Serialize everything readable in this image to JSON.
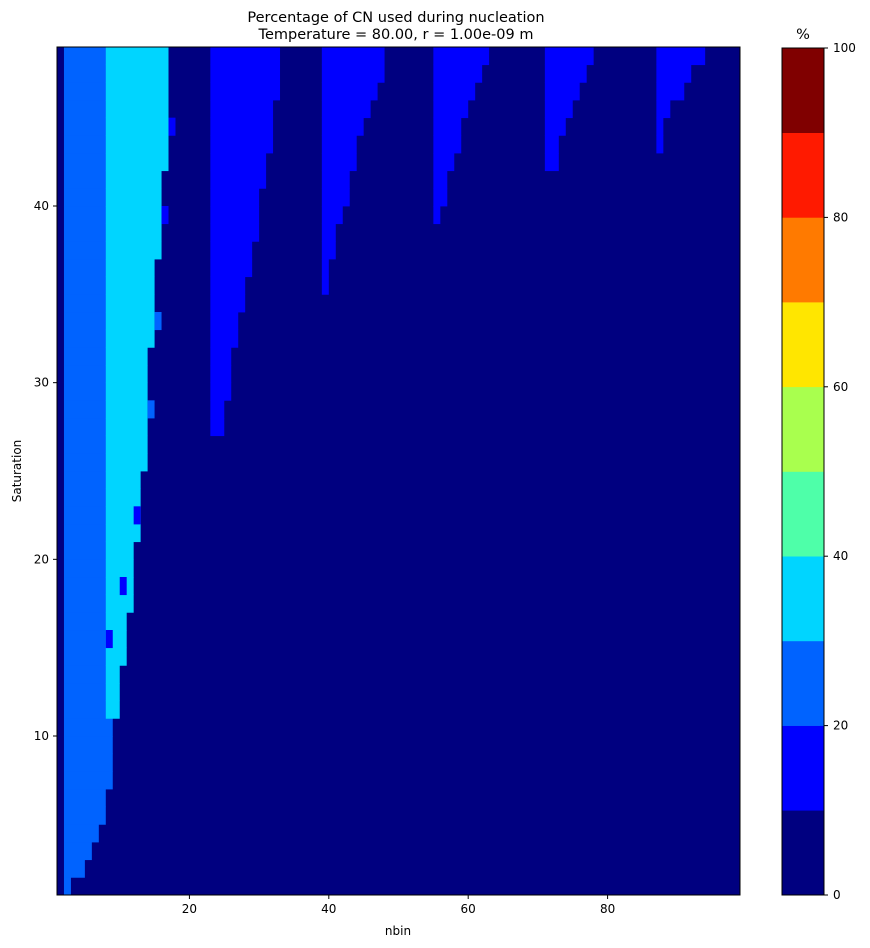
{
  "chart_data": {
    "type": "heatmap",
    "title": "Percentage of CN used during nucleation",
    "subtitle": "Temperature = 80.00, r = 1.00e-09 m",
    "xlabel": "nbin",
    "ylabel": "Saturation",
    "xlim": [
      1,
      99
    ],
    "ylim": [
      1,
      49
    ],
    "x_ticks": [
      20,
      40,
      60,
      80
    ],
    "y_ticks": [
      10,
      20,
      30,
      40
    ],
    "colorbar": {
      "label": "%",
      "range": [
        0,
        100
      ],
      "ticks": [
        0,
        20,
        40,
        60,
        80,
        100
      ],
      "levels": [
        0,
        10,
        20,
        30,
        40,
        50,
        60,
        70,
        80,
        90,
        100
      ],
      "colors": [
        "#000080",
        "#0000ff",
        "#0063ff",
        "#00d5ff",
        "#4effa9",
        "#a9ff4e",
        "#ffe600",
        "#ff7a00",
        "#ff1a00",
        "#800000"
      ]
    },
    "background_percent": 5,
    "bands": [
      {
        "x": [
          2,
          8
        ],
        "percent": 25,
        "rows": [
          [
            2,
            3
          ],
          [
            3,
            5
          ],
          [
            4,
            6
          ],
          [
            5,
            7
          ],
          [
            6,
            8
          ],
          [
            7,
            8
          ],
          [
            8,
            9
          ],
          [
            9,
            9
          ],
          [
            10,
            9
          ],
          [
            11,
            9
          ],
          [
            12,
            9
          ],
          [
            13,
            9
          ],
          [
            14,
            9
          ],
          [
            15,
            9
          ],
          [
            16,
            9
          ],
          [
            17,
            9
          ],
          [
            18,
            9
          ],
          [
            19,
            9
          ],
          [
            20,
            9
          ],
          [
            21,
            9
          ],
          [
            22,
            9
          ],
          [
            23,
            9
          ],
          [
            24,
            9
          ],
          [
            25,
            9
          ],
          [
            26,
            9
          ],
          [
            27,
            9
          ],
          [
            28,
            9
          ],
          [
            29,
            9
          ],
          [
            30,
            9
          ],
          [
            31,
            9
          ],
          [
            32,
            9
          ],
          [
            33,
            9
          ],
          [
            34,
            9
          ],
          [
            35,
            9
          ],
          [
            36,
            9
          ],
          [
            37,
            9
          ],
          [
            38,
            9
          ],
          [
            39,
            9
          ],
          [
            40,
            9
          ],
          [
            41,
            9
          ],
          [
            42,
            9
          ],
          [
            43,
            9
          ],
          [
            44,
            9
          ],
          [
            45,
            9
          ],
          [
            46,
            9
          ],
          [
            47,
            9
          ],
          [
            48,
            9
          ],
          [
            49,
            9
          ]
        ]
      },
      {
        "x": [
          8,
          17
        ],
        "percent": 35,
        "rows": [
          [
            12,
            10
          ],
          [
            13,
            10
          ],
          [
            14,
            10
          ],
          [
            15,
            11
          ],
          [
            16,
            11
          ],
          [
            17,
            11
          ],
          [
            18,
            12
          ],
          [
            19,
            12
          ],
          [
            20,
            12
          ],
          [
            21,
            12
          ],
          [
            22,
            13
          ],
          [
            23,
            13
          ],
          [
            24,
            13
          ],
          [
            25,
            13
          ],
          [
            26,
            14
          ],
          [
            27,
            14
          ],
          [
            28,
            14
          ],
          [
            29,
            14
          ],
          [
            30,
            14
          ],
          [
            31,
            14
          ],
          [
            32,
            14
          ],
          [
            33,
            15
          ],
          [
            34,
            15
          ],
          [
            35,
            15
          ],
          [
            36,
            15
          ],
          [
            37,
            15
          ],
          [
            38,
            16
          ],
          [
            39,
            16
          ],
          [
            40,
            16
          ],
          [
            41,
            16
          ],
          [
            42,
            16
          ],
          [
            43,
            17
          ],
          [
            44,
            17
          ],
          [
            45,
            17
          ],
          [
            46,
            17
          ],
          [
            47,
            17
          ],
          [
            48,
            17
          ],
          [
            49,
            17
          ]
        ]
      },
      {
        "x": [
          23,
          32
        ],
        "percent": 15,
        "rows": [
          [
            28,
            25
          ],
          [
            29,
            25
          ],
          [
            30,
            26
          ],
          [
            31,
            26
          ],
          [
            32,
            26
          ],
          [
            33,
            27
          ],
          [
            34,
            27
          ],
          [
            35,
            28
          ],
          [
            36,
            28
          ],
          [
            37,
            29
          ],
          [
            38,
            29
          ],
          [
            39,
            30
          ],
          [
            40,
            30
          ],
          [
            41,
            30
          ],
          [
            42,
            31
          ],
          [
            43,
            31
          ],
          [
            44,
            32
          ],
          [
            45,
            32
          ],
          [
            46,
            32
          ],
          [
            47,
            33
          ],
          [
            48,
            33
          ],
          [
            49,
            33
          ]
        ]
      },
      {
        "x": [
          39,
          48
        ],
        "percent": 15,
        "rows": [
          [
            36,
            40
          ],
          [
            37,
            40
          ],
          [
            38,
            41
          ],
          [
            39,
            41
          ],
          [
            40,
            42
          ],
          [
            41,
            43
          ],
          [
            42,
            43
          ],
          [
            43,
            44
          ],
          [
            44,
            44
          ],
          [
            45,
            45
          ],
          [
            46,
            46
          ],
          [
            47,
            47
          ],
          [
            48,
            48
          ],
          [
            49,
            48
          ]
        ]
      },
      {
        "x": [
          55,
          63
        ],
        "percent": 15,
        "rows": [
          [
            40,
            56
          ],
          [
            41,
            57
          ],
          [
            42,
            57
          ],
          [
            43,
            58
          ],
          [
            44,
            59
          ],
          [
            45,
            59
          ],
          [
            46,
            60
          ],
          [
            47,
            61
          ],
          [
            48,
            62
          ],
          [
            49,
            63
          ]
        ]
      },
      {
        "x": [
          71,
          78
        ],
        "percent": 15,
        "rows": [
          [
            43,
            73
          ],
          [
            44,
            73
          ],
          [
            45,
            74
          ],
          [
            46,
            75
          ],
          [
            47,
            76
          ],
          [
            48,
            77
          ],
          [
            49,
            78
          ]
        ]
      },
      {
        "x": [
          87,
          94
        ],
        "percent": 15,
        "rows": [
          [
            44,
            88
          ],
          [
            45,
            88
          ],
          [
            46,
            89
          ],
          [
            47,
            91
          ],
          [
            48,
            92
          ],
          [
            49,
            94
          ]
        ]
      }
    ],
    "bumps": [
      {
        "x": 8,
        "y": 16,
        "percent": 15
      },
      {
        "x": 10,
        "y": 19,
        "percent": 15
      },
      {
        "x": 12,
        "y": 23,
        "percent": 15
      },
      {
        "x": 14,
        "y": 29,
        "percent": 25
      },
      {
        "x": 15,
        "y": 34,
        "percent": 25
      },
      {
        "x": 16,
        "y": 40,
        "percent": 15
      },
      {
        "x": 17,
        "y": 45,
        "percent": 15
      }
    ]
  }
}
